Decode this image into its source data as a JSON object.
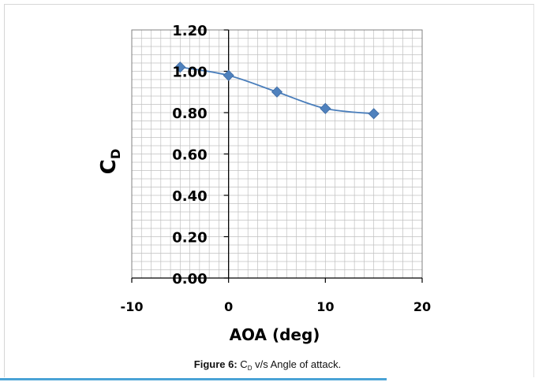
{
  "chart_data": {
    "type": "scatter",
    "x": [
      -5,
      0,
      5,
      10,
      15
    ],
    "y": [
      1.02,
      0.98,
      0.9,
      0.82,
      0.795
    ],
    "xlim": [
      -10,
      20
    ],
    "ylim": [
      0,
      1.2
    ],
    "x_ticks": [
      -10,
      0,
      10,
      20
    ],
    "y_ticks": [
      0,
      0.2,
      0.4,
      0.6,
      0.8,
      1.0,
      1.2
    ],
    "x_tick_labels": [
      "-10",
      "0",
      "10",
      "20"
    ],
    "y_tick_labels": [
      "0.00",
      "0.20",
      "0.40",
      "0.60",
      "0.80",
      "1.00",
      "1.20"
    ],
    "xlabel": "AOA (deg)",
    "ylabel_main": "C",
    "ylabel_sub": "D",
    "grid": true,
    "smoothed_line": true,
    "marker": "diamond",
    "series_color": "#4a7ebb",
    "marker_color": "#4f81bd"
  },
  "caption": {
    "label": "Figure 6:",
    "text_before": " C",
    "subscript": "D",
    "text_after": " v/s Angle of attack."
  },
  "colors": {
    "grid": "#c0c0c0",
    "axis": "#000000",
    "accent_rule": "#4aa3d6"
  }
}
